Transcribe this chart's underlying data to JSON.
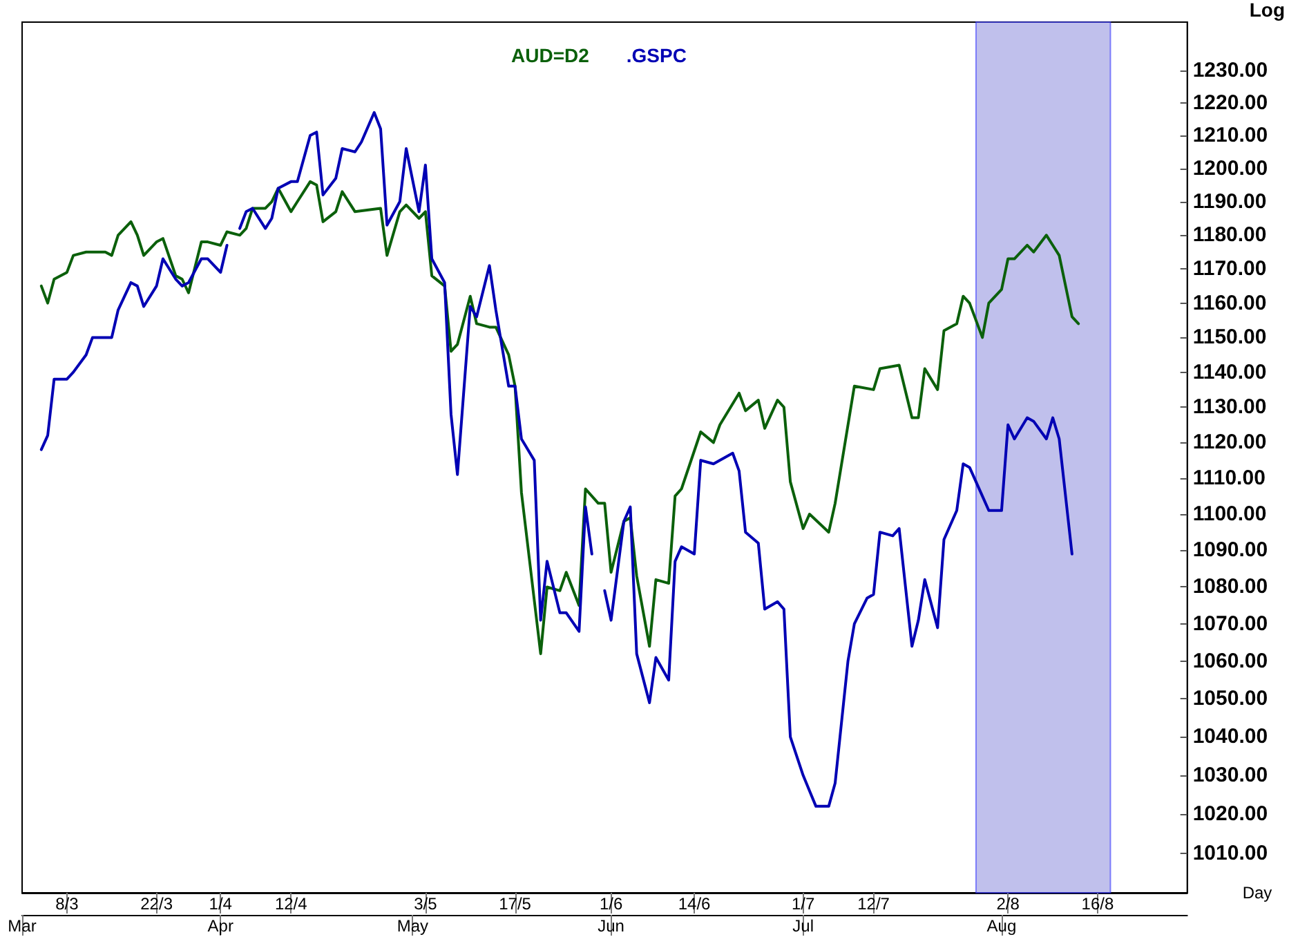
{
  "chart_data": {
    "type": "line",
    "xlabel": "Day",
    "ylabel": "Log",
    "log": "y",
    "grid": false,
    "legend": "top",
    "marker": "none",
    "line_style": "solid",
    "xlim": [
      "--03-01",
      "--08-30"
    ],
    "xticks": [
      {
        "value": "--03-08",
        "label": "8/3"
      },
      {
        "value": "--03-22",
        "label": "22/3"
      },
      {
        "value": "--04-01",
        "label": "1/4"
      },
      {
        "value": "--04-12",
        "label": "12/4"
      },
      {
        "value": "--05-03",
        "label": "3/5"
      },
      {
        "value": "--05-17",
        "label": "17/5"
      },
      {
        "value": "--06-01",
        "label": "1/6"
      },
      {
        "value": "--06-14",
        "label": "14/6"
      },
      {
        "value": "--07-01",
        "label": "1/7"
      },
      {
        "value": "--07-12",
        "label": "12/7"
      },
      {
        "value": "--08-02",
        "label": "2/8"
      },
      {
        "value": "--08-16",
        "label": "16/8"
      }
    ],
    "x2lim": [
      "--03-01",
      "--08-30"
    ],
    "x2ticks": [
      {
        "value": "--03-01",
        "label": "Mar"
      },
      {
        "value": "--04-01",
        "label": "Apr"
      },
      {
        "value": "--05-01",
        "label": "May"
      },
      {
        "value": "--06-01",
        "label": "Jun"
      },
      {
        "value": "--07-01",
        "label": "Jul"
      },
      {
        "value": "--08-01",
        "label": "Aug"
      }
    ],
    "ylim": [
      1000,
      1245
    ],
    "yticks": [
      {
        "value": 1010,
        "label": "1010.00"
      },
      {
        "value": 1020,
        "label": "1020.00"
      },
      {
        "value": 1030,
        "label": "1030.00"
      },
      {
        "value": 1040,
        "label": "1040.00"
      },
      {
        "value": 1050,
        "label": "1050.00"
      },
      {
        "value": 1060,
        "label": "1060.00"
      },
      {
        "value": 1070,
        "label": "1070.00"
      },
      {
        "value": 1080,
        "label": "1080.00"
      },
      {
        "value": 1090,
        "label": "1090.00"
      },
      {
        "value": 1100,
        "label": "1100.00"
      },
      {
        "value": 1110,
        "label": "1110.00"
      },
      {
        "value": 1120,
        "label": "1120.00"
      },
      {
        "value": 1130,
        "label": "1130.00"
      },
      {
        "value": 1140,
        "label": "1140.00"
      },
      {
        "value": 1150,
        "label": "1150.00"
      },
      {
        "value": 1160,
        "label": "1160.00"
      },
      {
        "value": 1170,
        "label": "1170.00"
      },
      {
        "value": 1180,
        "label": "1180.00"
      },
      {
        "value": 1190,
        "label": "1190.00"
      },
      {
        "value": 1200,
        "label": "1200.00"
      },
      {
        "value": 1210,
        "label": "1210.00"
      },
      {
        "value": 1220,
        "label": "1220.00"
      },
      {
        "value": 1230,
        "label": "1230.00"
      }
    ],
    "bands": [
      {
        "axis": "x",
        "from": "--07-28",
        "to": "--08-18",
        "color": "#8c8cdc"
      }
    ],
    "series": [
      {
        "name": "AUD=D2",
        "color": "#0b600b",
        "x": [
          "--03-04",
          "--03-05",
          "--03-06",
          "--03-08",
          "--03-09",
          "--03-11",
          "--03-14",
          "--03-15",
          "--03-16",
          "--03-18",
          "--03-19",
          "--03-20",
          "--03-22",
          "--03-23",
          "--03-25",
          "--03-26",
          "--03-27",
          "--03-29",
          "--03-30",
          "--04-01",
          "--04-02",
          "--04-04",
          "--04-05",
          "--04-06",
          "--04-08",
          "--04-09",
          "--04-10",
          "--04-12",
          "--04-13",
          "--04-15",
          "--04-16",
          "--04-17",
          "--04-19",
          "--04-20",
          "--04-22",
          "--04-26",
          "--04-27",
          "--04-29",
          "--04-30",
          "--05-02",
          "--05-03",
          "--05-04",
          "--05-06",
          "--05-07",
          "--05-08",
          "--05-10",
          "--05-11",
          "--05-13",
          "--05-14",
          "--05-16",
          "--05-17",
          "--05-18",
          "--05-21",
          "--05-22",
          "--05-24",
          "--05-25",
          "--05-27",
          "--05-28",
          "--05-30",
          "--05-31",
          "--06-01",
          "--06-03",
          "--06-04",
          "--06-05",
          "--06-07",
          "--06-08",
          "--06-10",
          "--06-11",
          "--06-12",
          "--06-15",
          "--06-17",
          "--06-18",
          "--06-21",
          "--06-22",
          "--06-24",
          "--06-25",
          "--06-27",
          "--06-28",
          "--06-29",
          "--07-01",
          "--07-02",
          "--07-05",
          "--07-06",
          "--07-09",
          "--07-12",
          "--07-13",
          "--07-16",
          "--07-18",
          "--07-19",
          "--07-20",
          "--07-22",
          "--07-23",
          "--07-25",
          "--07-26",
          "--07-27",
          "--07-29",
          "--07-30",
          "--08-01",
          "--08-02",
          "--08-03",
          "--08-05",
          "--08-06",
          "--08-08",
          "--08-09",
          "--08-10",
          "--08-12",
          "--08-13"
        ],
        "values": [
          1165,
          1160,
          1167,
          1169,
          1174,
          1175,
          1175,
          1174,
          1180,
          1184,
          1180,
          1174,
          1178,
          1179,
          1168,
          1167,
          1163,
          1178,
          1178,
          1177,
          1181,
          1180,
          1182,
          1188,
          1188,
          1190,
          1194,
          1187,
          1190,
          1196,
          1195,
          1184,
          1187,
          1193,
          1187,
          1188,
          1174,
          1187,
          1189,
          1185,
          1187,
          1168,
          1165,
          1146,
          1148,
          1162,
          1154,
          1153,
          1153,
          1145,
          1136,
          1106,
          1062,
          1080,
          1079,
          1084,
          1075,
          1107,
          1103,
          1103,
          1084,
          1098,
          1099,
          1083,
          1064,
          1082,
          1081,
          1105,
          1107,
          1123,
          1120,
          1125,
          1134,
          1129,
          1132,
          1124,
          1132,
          1130,
          1109,
          1096,
          1100,
          1095,
          1103,
          1136,
          1135,
          1141,
          1142,
          1127,
          1127,
          1141,
          1135,
          1152,
          1154,
          1162,
          1160,
          1150,
          1160,
          1164,
          1173,
          1173,
          1177,
          1175,
          1180,
          1177,
          1174,
          1156,
          1154
        ]
      },
      {
        "name": ".GSPC",
        "color": "#0000b4",
        "x": [
          "--03-04",
          "--03-05",
          "--03-06",
          "--03-08",
          "--03-09",
          "--03-11",
          "--03-12",
          "--03-15",
          "--03-16",
          "--03-18",
          "--03-19",
          "--03-20",
          "--03-22",
          "--03-23",
          "--03-25",
          "--03-26",
          "--03-27",
          "--03-29",
          "--03-30",
          "--04-01",
          "--04-02",
          "--04-03",
          "--04-04",
          "--04-05",
          "--04-06",
          "--04-08",
          "--04-09",
          "--04-10",
          "--04-12",
          "--04-13",
          "--04-15",
          "--04-16",
          "--04-17",
          "--04-19",
          "--04-20",
          "--04-22",
          "--04-23",
          "--04-25",
          "--04-26",
          "--04-27",
          "--04-29",
          "--04-30",
          "--05-02",
          "--05-03",
          "--05-04",
          "--05-06",
          "--05-07",
          "--05-08",
          "--05-10",
          "--05-11",
          "--05-13",
          "--05-14",
          "--05-16",
          "--05-17",
          "--05-18",
          "--05-20",
          "--05-21",
          "--05-22",
          "--05-24",
          "--05-25",
          "--05-27",
          "--05-28",
          "--05-29",
          "--05-30",
          "--05-31",
          "--06-01",
          "--06-03",
          "--06-04",
          "--06-05",
          "--06-07",
          "--06-08",
          "--06-10",
          "--06-11",
          "--06-12",
          "--06-14",
          "--06-15",
          "--06-17",
          "--06-20",
          "--06-21",
          "--06-22",
          "--06-24",
          "--06-25",
          "--06-27",
          "--06-28",
          "--06-29",
          "--07-01",
          "--07-02",
          "--07-03",
          "--07-05",
          "--07-06",
          "--07-08",
          "--07-09",
          "--07-11",
          "--07-12",
          "--07-13",
          "--07-15",
          "--07-16",
          "--07-18",
          "--07-19",
          "--07-20",
          "--07-22",
          "--07-23",
          "--07-25",
          "--07-26",
          "--07-27",
          "--07-29",
          "--07-30",
          "--08-01",
          "--08-02",
          "--08-03",
          "--08-05",
          "--08-06",
          "--08-08",
          "--08-09",
          "--08-10",
          "--08-12"
        ],
        "values": [
          1118,
          1122,
          1138,
          1138,
          1140,
          1145,
          1150,
          1150,
          1158,
          1166,
          1165,
          1159,
          1165,
          1173,
          1167,
          1165,
          1166,
          1173,
          1173,
          1169,
          1177,
          null,
          1182,
          1187,
          1188,
          1182,
          1185,
          1194,
          1196,
          1196,
          1210,
          1211,
          1192,
          1197,
          1206,
          1205,
          1208,
          1217,
          1212,
          1183,
          1190,
          1206,
          1187,
          1201,
          1173,
          1166,
          1128,
          1111,
          1159,
          1156,
          1171,
          1158,
          1136,
          1136,
          1121,
          1115,
          1071,
          1087,
          1073,
          1073,
          1068,
          1102,
          1089,
          null,
          1079,
          1071,
          1098,
          1102,
          1062,
          1049,
          1061,
          1055,
          1087,
          1091,
          1089,
          1115,
          1114,
          1117,
          1112,
          1095,
          1092,
          1074,
          1076,
          1074,
          1040,
          1030,
          1026,
          1022,
          1022,
          1028,
          1060,
          1070,
          1077,
          1078,
          1095,
          1094,
          1096,
          1064,
          1071,
          1082,
          1069,
          1093,
          1101,
          1114,
          1113,
          1105,
          1101,
          1101,
          1125,
          1121,
          1127,
          1126,
          1121,
          1127,
          1121,
          1089
        ]
      }
    ]
  }
}
